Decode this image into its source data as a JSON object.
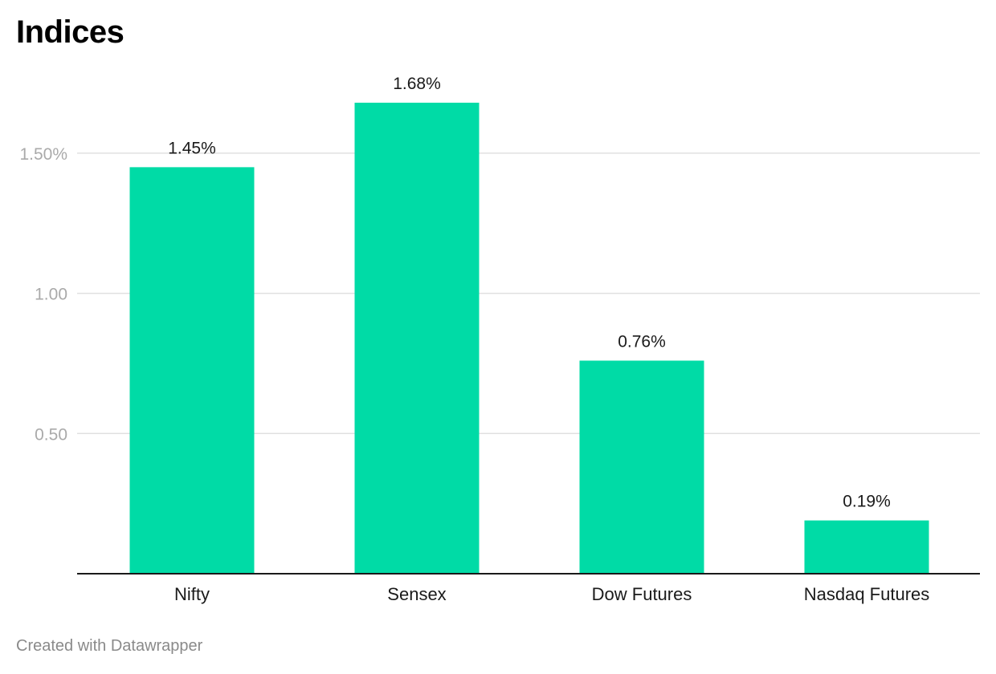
{
  "chart_data": {
    "type": "bar",
    "title": "Indices",
    "categories": [
      "Nifty",
      "Sensex",
      "Dow Futures",
      "Nasdaq Futures"
    ],
    "values": [
      1.45,
      1.68,
      0.76,
      0.19
    ],
    "value_labels": [
      "1.45%",
      "1.68%",
      "0.76%",
      "0.19%"
    ],
    "y_ticks": [
      {
        "value": 0.5,
        "label": "0.50"
      },
      {
        "value": 1.0,
        "label": "1.00"
      },
      {
        "value": 1.5,
        "label": "1.50%"
      }
    ],
    "ylim": [
      0,
      1.68
    ],
    "xlabel": "",
    "ylabel": "",
    "grid": true,
    "legend": "none",
    "bar_color": "#00dba6",
    "grid_color": "#e0e0e0",
    "axis_color": "#1a1a1a"
  },
  "footer": {
    "credit": "Created with Datawrapper"
  }
}
